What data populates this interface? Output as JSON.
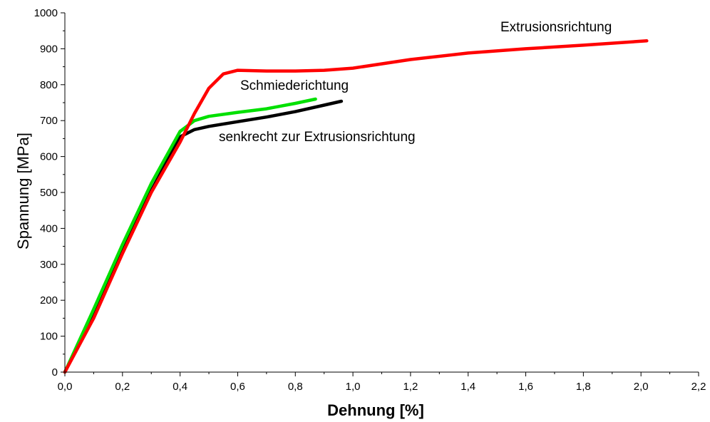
{
  "chart_data": {
    "type": "line",
    "xlabel": "Dehnung [%]",
    "ylabel": "Spannung [MPa]",
    "xlim": [
      0.0,
      2.2
    ],
    "ylim": [
      0,
      1000
    ],
    "grid": false,
    "legend": "none",
    "x_ticks": [
      "0,0",
      "0,2",
      "0,4",
      "0,6",
      "0,8",
      "1,0",
      "1,2",
      "1,4",
      "1,6",
      "1,8",
      "2,0",
      "2,2"
    ],
    "y_ticks": [
      "0",
      "100",
      "200",
      "300",
      "400",
      "500",
      "600",
      "700",
      "800",
      "900",
      "1000"
    ],
    "annotations": {
      "extrusion": "Extrusionsrichtung",
      "forging": "Schmiederichtung",
      "perpendicular": "senkrecht zur Extrusionsrichtung"
    },
    "series": [
      {
        "color": "#ff0000",
        "x": [
          0.0,
          0.1,
          0.2,
          0.3,
          0.4,
          0.45,
          0.5,
          0.55,
          0.6,
          0.7,
          0.8,
          0.9,
          1.0,
          1.2,
          1.4,
          1.6,
          1.8,
          2.02
        ],
        "y": [
          0,
          150,
          330,
          500,
          640,
          720,
          790,
          830,
          840,
          838,
          838,
          840,
          846,
          870,
          888,
          900,
          910,
          922
        ]
      },
      {
        "color": "#00e000",
        "x": [
          0.0,
          0.1,
          0.2,
          0.3,
          0.4,
          0.45,
          0.5,
          0.6,
          0.7,
          0.8,
          0.87
        ],
        "y": [
          0,
          175,
          355,
          525,
          670,
          700,
          712,
          723,
          733,
          748,
          760
        ]
      },
      {
        "color": "#000000",
        "x": [
          0.0,
          0.1,
          0.2,
          0.3,
          0.4,
          0.45,
          0.5,
          0.6,
          0.7,
          0.8,
          0.9,
          0.96
        ],
        "y": [
          0,
          160,
          340,
          505,
          655,
          675,
          684,
          697,
          710,
          725,
          743,
          754
        ]
      }
    ]
  }
}
